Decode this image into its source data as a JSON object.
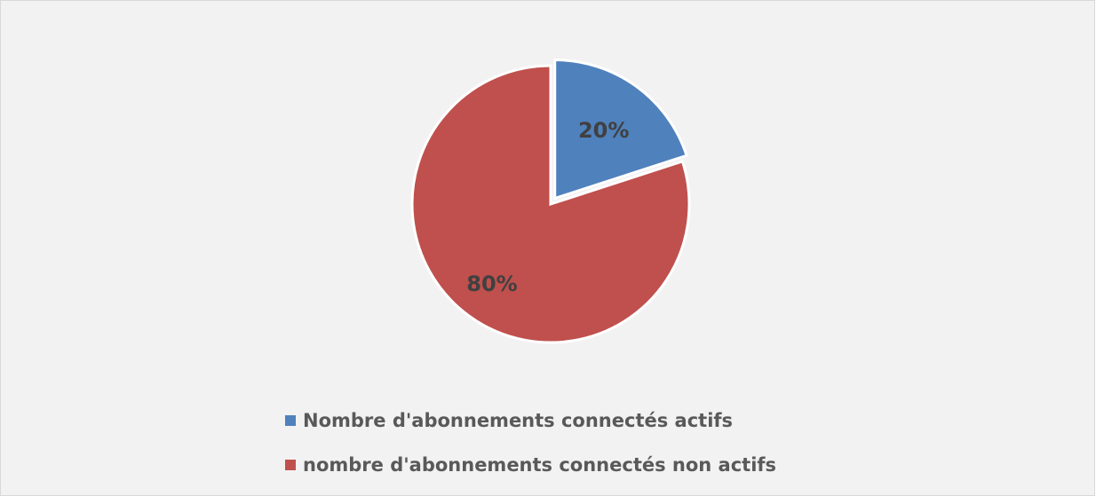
{
  "chart_data": {
    "type": "pie",
    "categories": [
      "Nombre d'abonnements connectés actifs",
      "nombre d'abonnements connectés non actifs"
    ],
    "values": [
      20,
      80
    ],
    "value_labels": [
      "20%",
      "80%"
    ],
    "colors": [
      "#4f81bd",
      "#c0504d"
    ],
    "legend": "bottom"
  }
}
